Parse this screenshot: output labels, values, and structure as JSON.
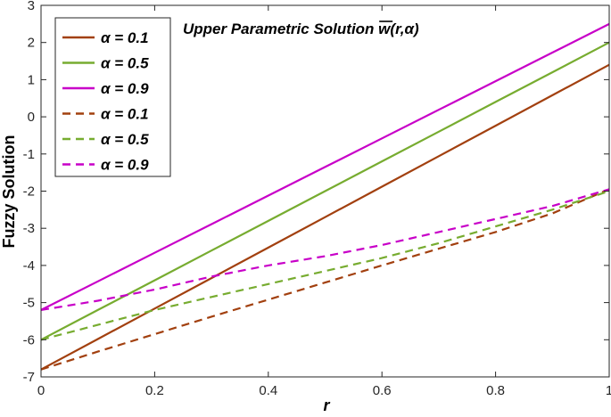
{
  "chart_data": {
    "type": "line",
    "title_prefix": "Upper Parametric Solution",
    "title_symbol": "w",
    "title_args": "(r,α)",
    "xlabel": "r",
    "ylabel": "Fuzzy Solution",
    "xlim": [
      0,
      1
    ],
    "ylim": [
      -7,
      3
    ],
    "xticks": [
      0,
      0.2,
      0.4,
      0.6,
      0.8,
      1
    ],
    "xtick_labels": [
      "0",
      "0.2",
      "0.4",
      "0.6",
      "0.8",
      "1"
    ],
    "yticks": [
      -7,
      -6,
      -5,
      -4,
      -3,
      -2,
      -1,
      0,
      1,
      2,
      3
    ],
    "ytick_labels": [
      "-7",
      "-6",
      "-5",
      "-4",
      "-3",
      "-2",
      "-1",
      "0",
      "1",
      "2",
      "3"
    ],
    "grid": false,
    "legend_position": "top-left",
    "x": [
      0,
      0.1,
      0.2,
      0.3,
      0.4,
      0.5,
      0.6,
      0.7,
      0.8,
      0.9,
      1.0
    ],
    "series": [
      {
        "name": "α = 0.1",
        "style": "solid",
        "color": "#A2400F",
        "values": [
          -6.8,
          -5.98,
          -5.16,
          -4.34,
          -3.52,
          -2.7,
          -1.88,
          -1.06,
          -0.24,
          0.58,
          1.4
        ]
      },
      {
        "name": "α = 0.5",
        "style": "solid",
        "color": "#77AC30",
        "values": [
          -6.0,
          -5.2,
          -4.4,
          -3.6,
          -2.8,
          -2.0,
          -1.2,
          -0.4,
          0.4,
          1.2,
          2.0
        ]
      },
      {
        "name": "α = 0.9",
        "style": "solid",
        "color": "#C800C8",
        "values": [
          -5.2,
          -4.43,
          -3.66,
          -2.89,
          -2.12,
          -1.35,
          -0.58,
          0.19,
          0.96,
          1.73,
          2.5
        ]
      },
      {
        "name": "α = 0.1",
        "style": "dashed",
        "color": "#A2400F",
        "values": [
          -6.8,
          -6.32,
          -5.85,
          -5.38,
          -4.92,
          -4.46,
          -4.0,
          -3.55,
          -3.1,
          -2.6,
          -1.95
        ]
      },
      {
        "name": "α = 0.5",
        "style": "dashed",
        "color": "#77AC30",
        "values": [
          -6.0,
          -5.6,
          -5.2,
          -4.85,
          -4.5,
          -4.15,
          -3.8,
          -3.4,
          -2.95,
          -2.5,
          -2.0
        ]
      },
      {
        "name": "α = 0.9",
        "style": "dashed",
        "color": "#C800C8",
        "values": [
          -5.2,
          -4.95,
          -4.65,
          -4.3,
          -4.0,
          -3.75,
          -3.45,
          -3.1,
          -2.75,
          -2.4,
          -1.95
        ]
      }
    ]
  }
}
